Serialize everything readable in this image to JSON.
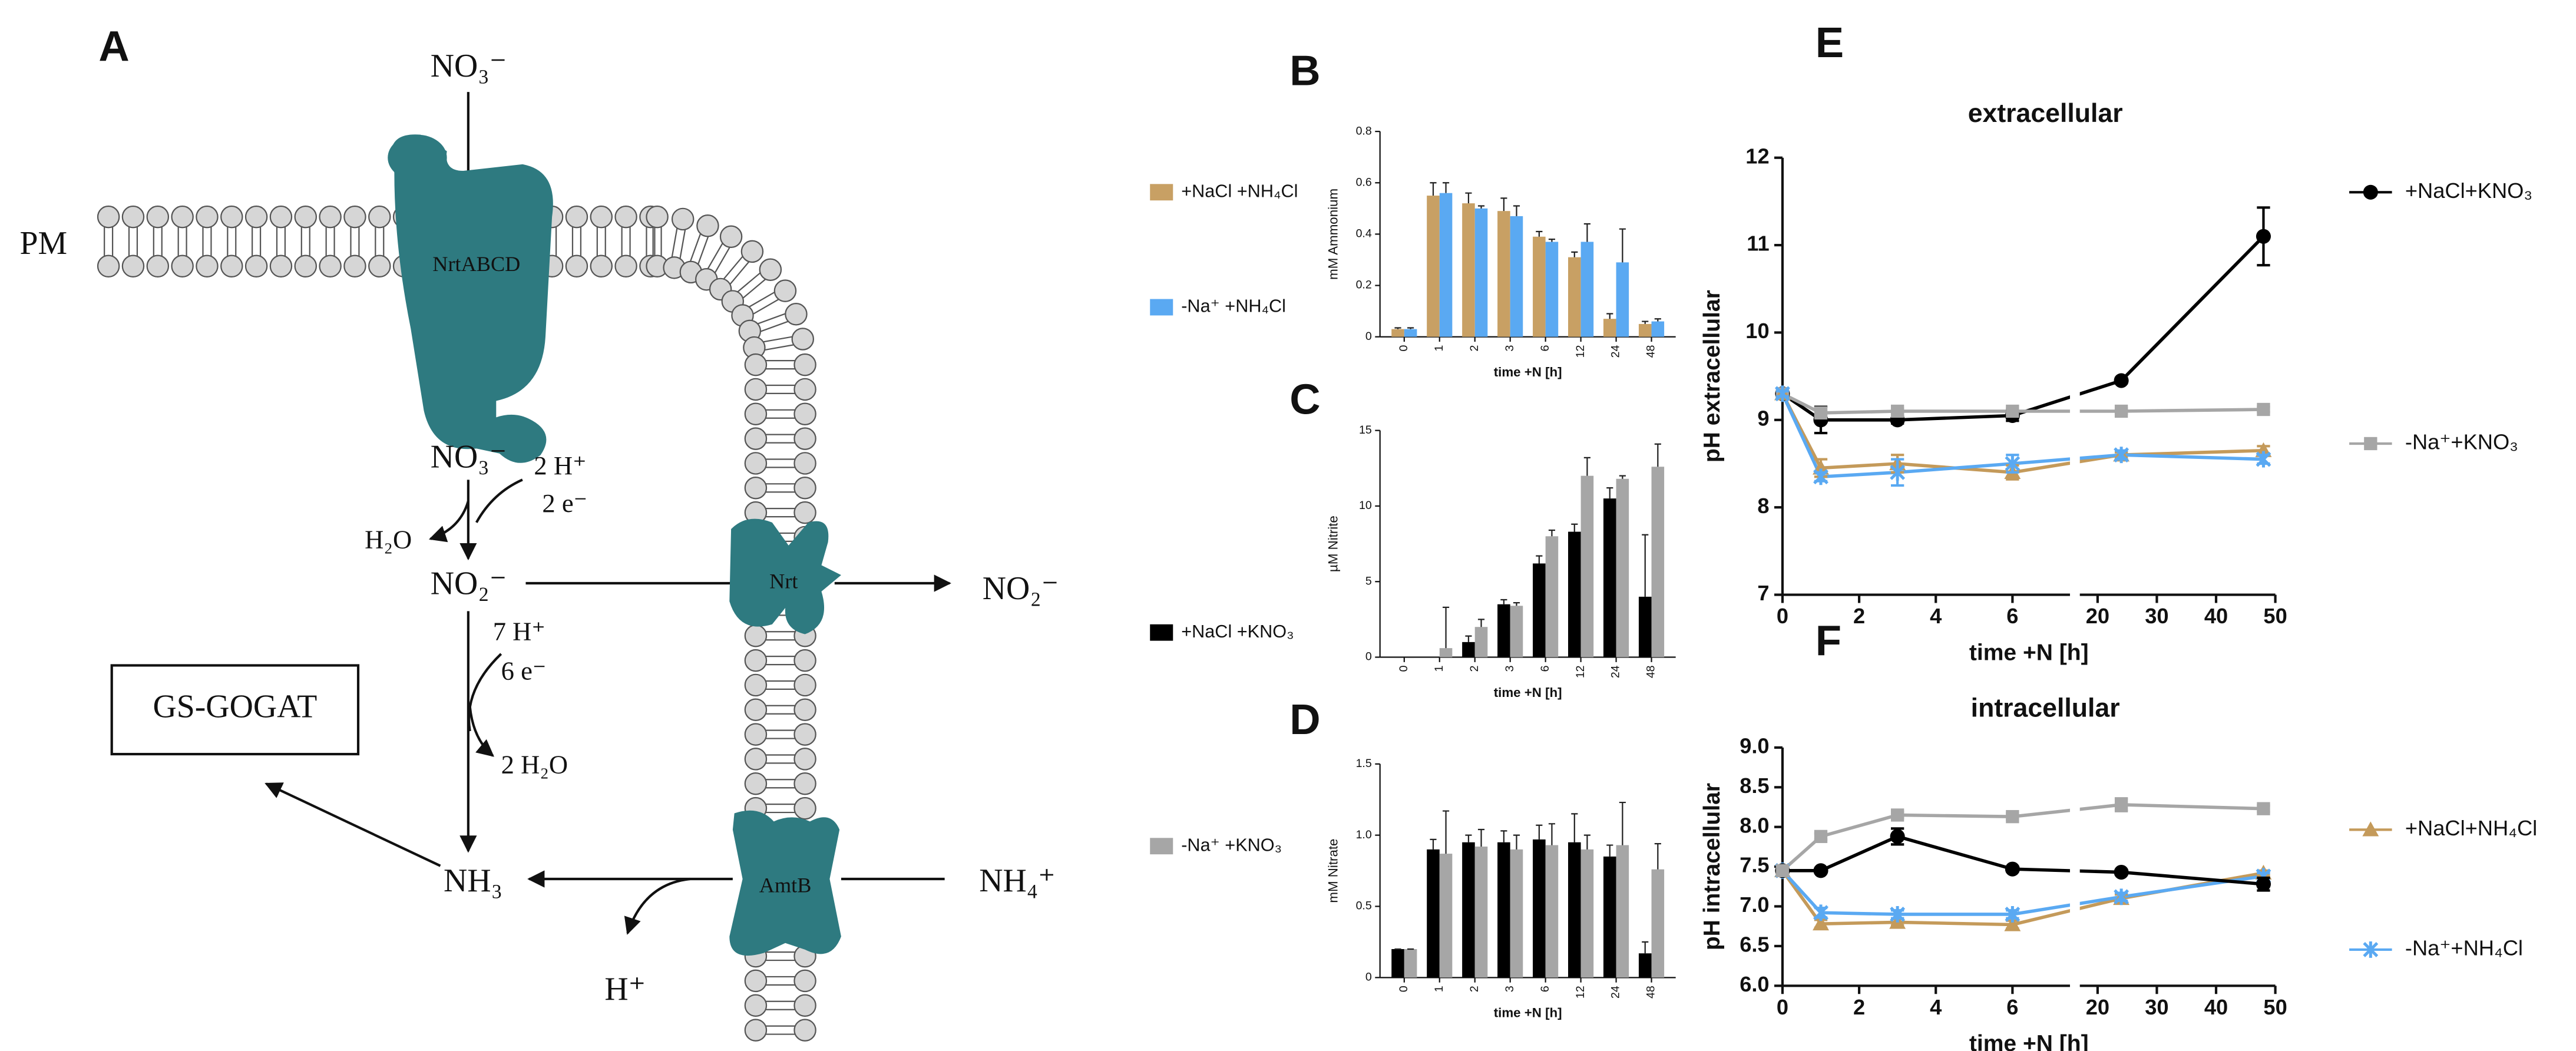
{
  "diagram": {
    "panel": "A",
    "membrane": "PM",
    "no3_out": "NO₃⁻",
    "transporter_1": "NrtABCD",
    "no3_in": "NO₃⁻",
    "h_in_1": "2 H⁺",
    "e_in_1": "2 e⁻",
    "water_1": "H₂O",
    "no2_in": "NO₂⁻",
    "transporter_2": "Nrt",
    "no2_out": "NO₂⁻",
    "h_in_2": "7 H⁺",
    "e_in_2": "6 e⁻",
    "water_2": "2 H₂O",
    "enzyme": "GS-GOGAT",
    "nh3": "NH₃",
    "transporter_3": "AmtB",
    "nh4_out": "NH₄⁺",
    "h_out": "H⁺"
  },
  "chart_data": [
    {
      "panel": "B",
      "type": "bar",
      "y_label": "mM Ammonium",
      "x_label": "time +N [h]",
      "categories": [
        "0",
        "1",
        "2",
        "3",
        "6",
        "12",
        "24",
        "48"
      ],
      "ylim": [
        0,
        0.8
      ],
      "yticks": [
        0,
        0.2,
        0.4,
        0.6,
        0.8
      ],
      "series": [
        {
          "name": "+NaCl +NH₄Cl",
          "color": "#c8a064",
          "values": [
            0.03,
            0.55,
            0.52,
            0.49,
            0.39,
            0.31,
            0.07,
            0.05
          ],
          "errors": [
            0.005,
            0.05,
            0.04,
            0.05,
            0.02,
            0.02,
            0.02,
            0.01
          ]
        },
        {
          "name": "-Na⁺ +NH₄Cl",
          "color": "#5aa9f2",
          "values": [
            0.03,
            0.56,
            0.5,
            0.47,
            0.37,
            0.37,
            0.29,
            0.06
          ],
          "errors": [
            0.005,
            0.04,
            0.01,
            0.04,
            0.01,
            0.07,
            0.13,
            0.01
          ]
        }
      ]
    },
    {
      "panel": "C",
      "type": "bar",
      "y_label": "µM Nitrite",
      "x_label": "time +N [h]",
      "categories": [
        "0",
        "1",
        "2",
        "3",
        "6",
        "12",
        "24",
        "48"
      ],
      "ylim": [
        0,
        15
      ],
      "yticks": [
        0,
        5,
        10,
        15
      ],
      "series": [
        {
          "name": "+NaCl +KNO₃",
          "color": "#000000",
          "values": [
            0,
            0,
            1.0,
            3.5,
            6.2,
            8.3,
            10.5,
            4.0
          ],
          "errors": [
            0,
            0,
            0.4,
            0.3,
            0.5,
            0.5,
            0.7,
            4.1
          ]
        },
        {
          "name": "-Na⁺ +KNO₃",
          "color": "#a6a6a6",
          "values": [
            0,
            0.6,
            2.0,
            3.4,
            8.0,
            12.0,
            11.8,
            12.6
          ],
          "errors": [
            0,
            2.7,
            0.5,
            0.2,
            0.4,
            1.2,
            0.2,
            1.5
          ]
        }
      ]
    },
    {
      "panel": "D",
      "type": "bar",
      "y_label": "mM Nitrate",
      "x_label": "time +N [h]",
      "categories": [
        "0",
        "1",
        "2",
        "3",
        "6",
        "12",
        "24",
        "48"
      ],
      "ylim": [
        0,
        1.5
      ],
      "yticks": [
        0,
        0.5,
        {
          "value": 1,
          "label": "1.0"
        },
        1.5
      ],
      "series": [
        {
          "color": "#000000",
          "values": [
            0.2,
            0.9,
            0.95,
            0.95,
            0.97,
            0.95,
            0.85,
            0.17
          ],
          "errors": [
            0,
            0.07,
            0.05,
            0.08,
            0.1,
            0.2,
            0.08,
            0.08
          ]
        },
        {
          "color": "#a6a6a6",
          "values": [
            0.2,
            0.87,
            0.92,
            0.9,
            0.93,
            0.9,
            0.93,
            0.76
          ],
          "errors": [
            0,
            0.3,
            0.12,
            0.1,
            0.15,
            0.1,
            0.3,
            0.18
          ]
        }
      ]
    },
    {
      "panel": "E",
      "type": "line",
      "title": "extracellular",
      "y_label": "pH extracellular",
      "x_label": "time +N [h]",
      "x": [
        0,
        1,
        3,
        6,
        24,
        48
      ],
      "xlim": [
        [
          0,
          7.5
        ],
        [
          17,
          50
        ]
      ],
      "xticks": [
        0,
        2,
        4,
        6,
        20,
        30,
        40,
        50
      ],
      "ylim": [
        7,
        12
      ],
      "yticks": [
        7,
        8,
        9,
        10,
        11,
        12
      ],
      "series": [
        {
          "name": "+NaCl+KNO₃",
          "color": "#000000",
          "marker": "circle",
          "values": [
            9.3,
            9.0,
            9.0,
            9.05,
            9.45,
            11.1
          ],
          "errors": [
            0.03,
            0.15,
            0.04,
            0.06,
            0.03,
            0.33
          ]
        },
        {
          "name": "-Na⁺+KNO₃",
          "color": "#a6a6a6",
          "marker": "square",
          "values": [
            9.3,
            9.08,
            9.1,
            9.1,
            9.1,
            9.12
          ],
          "errors": [
            0.02,
            0.03,
            0.03,
            0.03,
            0.03,
            0.03
          ]
        },
        {
          "color": "#c49a5a",
          "marker": "triangle",
          "values": [
            9.3,
            8.45,
            8.5,
            8.4,
            8.6,
            8.65
          ],
          "errors": [
            0.03,
            0.1,
            0.1,
            0.08,
            0.03,
            0.05
          ]
        },
        {
          "color": "#5aa9f2",
          "marker": "cross",
          "values": [
            9.3,
            8.35,
            8.4,
            8.5,
            8.6,
            8.55
          ],
          "errors": [
            0.03,
            0.05,
            0.15,
            0.1,
            0.05,
            0.05
          ]
        }
      ]
    },
    {
      "panel": "F",
      "type": "line",
      "title": "intracellular",
      "y_label": "pH intracellular",
      "x_label": "time +N [h]",
      "x": [
        0,
        1,
        3,
        6,
        24,
        48
      ],
      "xlim": [
        [
          0,
          7.5
        ],
        [
          17,
          50
        ]
      ],
      "xticks": [
        0,
        2,
        4,
        6,
        20,
        30,
        40,
        50
      ],
      "ylim": [
        6,
        9
      ],
      "yticks": [
        {
          "value": 6,
          "label": "6.0"
        },
        6.5,
        {
          "value": 7,
          "label": "7.0"
        },
        7.5,
        {
          "value": 8,
          "label": "8.0"
        },
        8.5,
        {
          "value": 9,
          "label": "9.0"
        }
      ],
      "series": [
        {
          "name": "+NaCl+NH₄Cl",
          "color": "#c49a5a",
          "marker": "triangle",
          "values": [
            7.45,
            6.78,
            6.8,
            6.77,
            7.1,
            7.42
          ],
          "errors": [
            0.03,
            0.05,
            0.04,
            0.05,
            0.05,
            0.03
          ]
        },
        {
          "name": "-Na⁺+NH₄Cl",
          "color": "#5aa9f2",
          "marker": "cross",
          "values": [
            7.45,
            6.92,
            6.9,
            6.9,
            7.12,
            7.38
          ],
          "errors": [
            0.03,
            0.06,
            0.05,
            0.05,
            0.05,
            0.04
          ]
        },
        {
          "color": "#000000",
          "marker": "circle",
          "values": [
            7.45,
            7.45,
            7.88,
            7.47,
            7.43,
            7.28
          ],
          "errors": [
            0.03,
            0.03,
            0.1,
            0.03,
            0.03,
            0.08
          ]
        },
        {
          "color": "#a6a6a6",
          "marker": "square",
          "values": [
            7.45,
            7.88,
            8.15,
            8.13,
            8.28,
            8.23
          ],
          "errors": [
            0.03,
            0.04,
            0.04,
            0.04,
            0.08,
            0.04
          ]
        }
      ]
    }
  ]
}
